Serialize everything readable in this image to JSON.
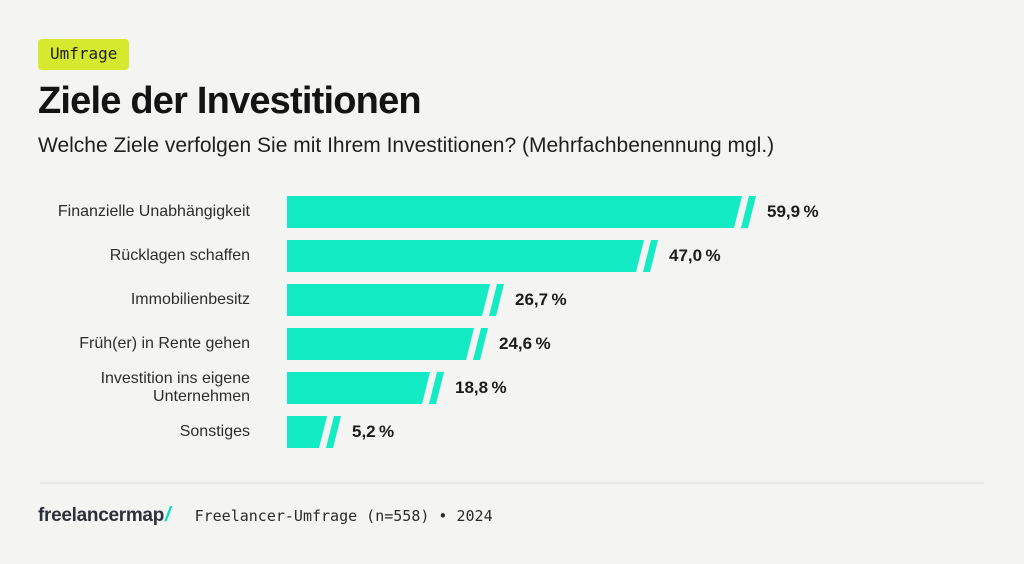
{
  "header": {
    "badge": "Umfrage",
    "title": "Ziele der Investitionen",
    "subtitle": "Welche Ziele verfolgen Sie mit Ihrem Investitionen? (Mehrfachbenennung mgl.)"
  },
  "chart_data": {
    "type": "bar",
    "orientation": "horizontal",
    "title": "Ziele der Investitionen",
    "categories": [
      "Finanzielle Unabhängigkeit",
      "Rücklagen schaffen",
      "Immobilienbesitz",
      "Früh(er) in Rente gehen",
      "Investition ins eigene Unternehmen",
      "Sonstiges"
    ],
    "values": [
      59.9,
      47.0,
      26.7,
      24.6,
      18.8,
      5.2
    ],
    "value_labels": [
      "59,9 %",
      "47,0 %",
      "26,7 %",
      "24,6 %",
      "18,8 %",
      "5,2 %"
    ],
    "unit": "%",
    "xlim": [
      0,
      62
    ],
    "grid": false,
    "legend": false
  },
  "footer": {
    "logo_text": "freelancermap",
    "logo_slash": "/",
    "source": "Freelancer-Umfrage (n=558) • 2024"
  },
  "colors": {
    "background": "#f4f4f2",
    "bar": "#12EBC3",
    "badge_bg": "#D7E92F",
    "text": "#1c1c1c",
    "logo_slash": "#00E0BE"
  }
}
